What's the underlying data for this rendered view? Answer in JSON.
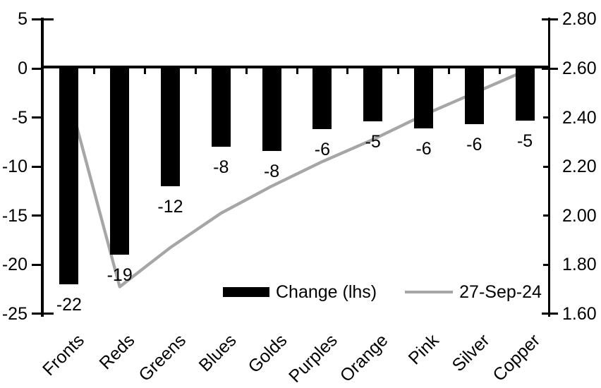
{
  "background_color": "#ffffff",
  "chart_data": {
    "type": "combo",
    "categories": [
      "Fronts",
      "Reds",
      "Greens",
      "Blues",
      "Golds",
      "Purples",
      "Orange",
      "Pink",
      "Silver",
      "Copper"
    ],
    "series": [
      {
        "name": "Change (lhs)",
        "type": "bar",
        "axis": "left",
        "color": "#000000",
        "values": [
          -22,
          -19,
          -12,
          -8,
          -8.4,
          -6.2,
          -5.4,
          -6.1,
          -5.7,
          -5.3
        ],
        "data_labels": [
          "-22",
          "-19",
          "-12",
          "-8",
          "-8",
          "-6",
          "-5",
          "-6",
          "-6",
          "-5"
        ]
      },
      {
        "name": "27-Sep-24",
        "type": "line",
        "axis": "right",
        "color": "#a6a6a6",
        "values": [
          2.48,
          1.71,
          1.87,
          2.01,
          2.12,
          2.22,
          2.31,
          2.41,
          2.5,
          2.59
        ]
      }
    ],
    "left_axis": {
      "ticks": [
        "5",
        "0",
        "-5",
        "-10",
        "-15",
        "-20",
        "-25"
      ],
      "range": [
        -25,
        5
      ]
    },
    "right_axis": {
      "ticks": [
        "2.80",
        "2.60",
        "2.40",
        "2.20",
        "2.00",
        "1.80",
        "1.60"
      ],
      "range": [
        1.6,
        2.8
      ]
    },
    "legend": {
      "position": "bottom-inside",
      "entries": [
        {
          "label": "Change (lhs)",
          "swatch": "bar",
          "color": "#000000"
        },
        {
          "label": "27-Sep-24",
          "swatch": "line",
          "color": "#a6a6a6"
        }
      ]
    },
    "grid": "off",
    "title": "",
    "xlabel": "",
    "ylabel": ""
  }
}
